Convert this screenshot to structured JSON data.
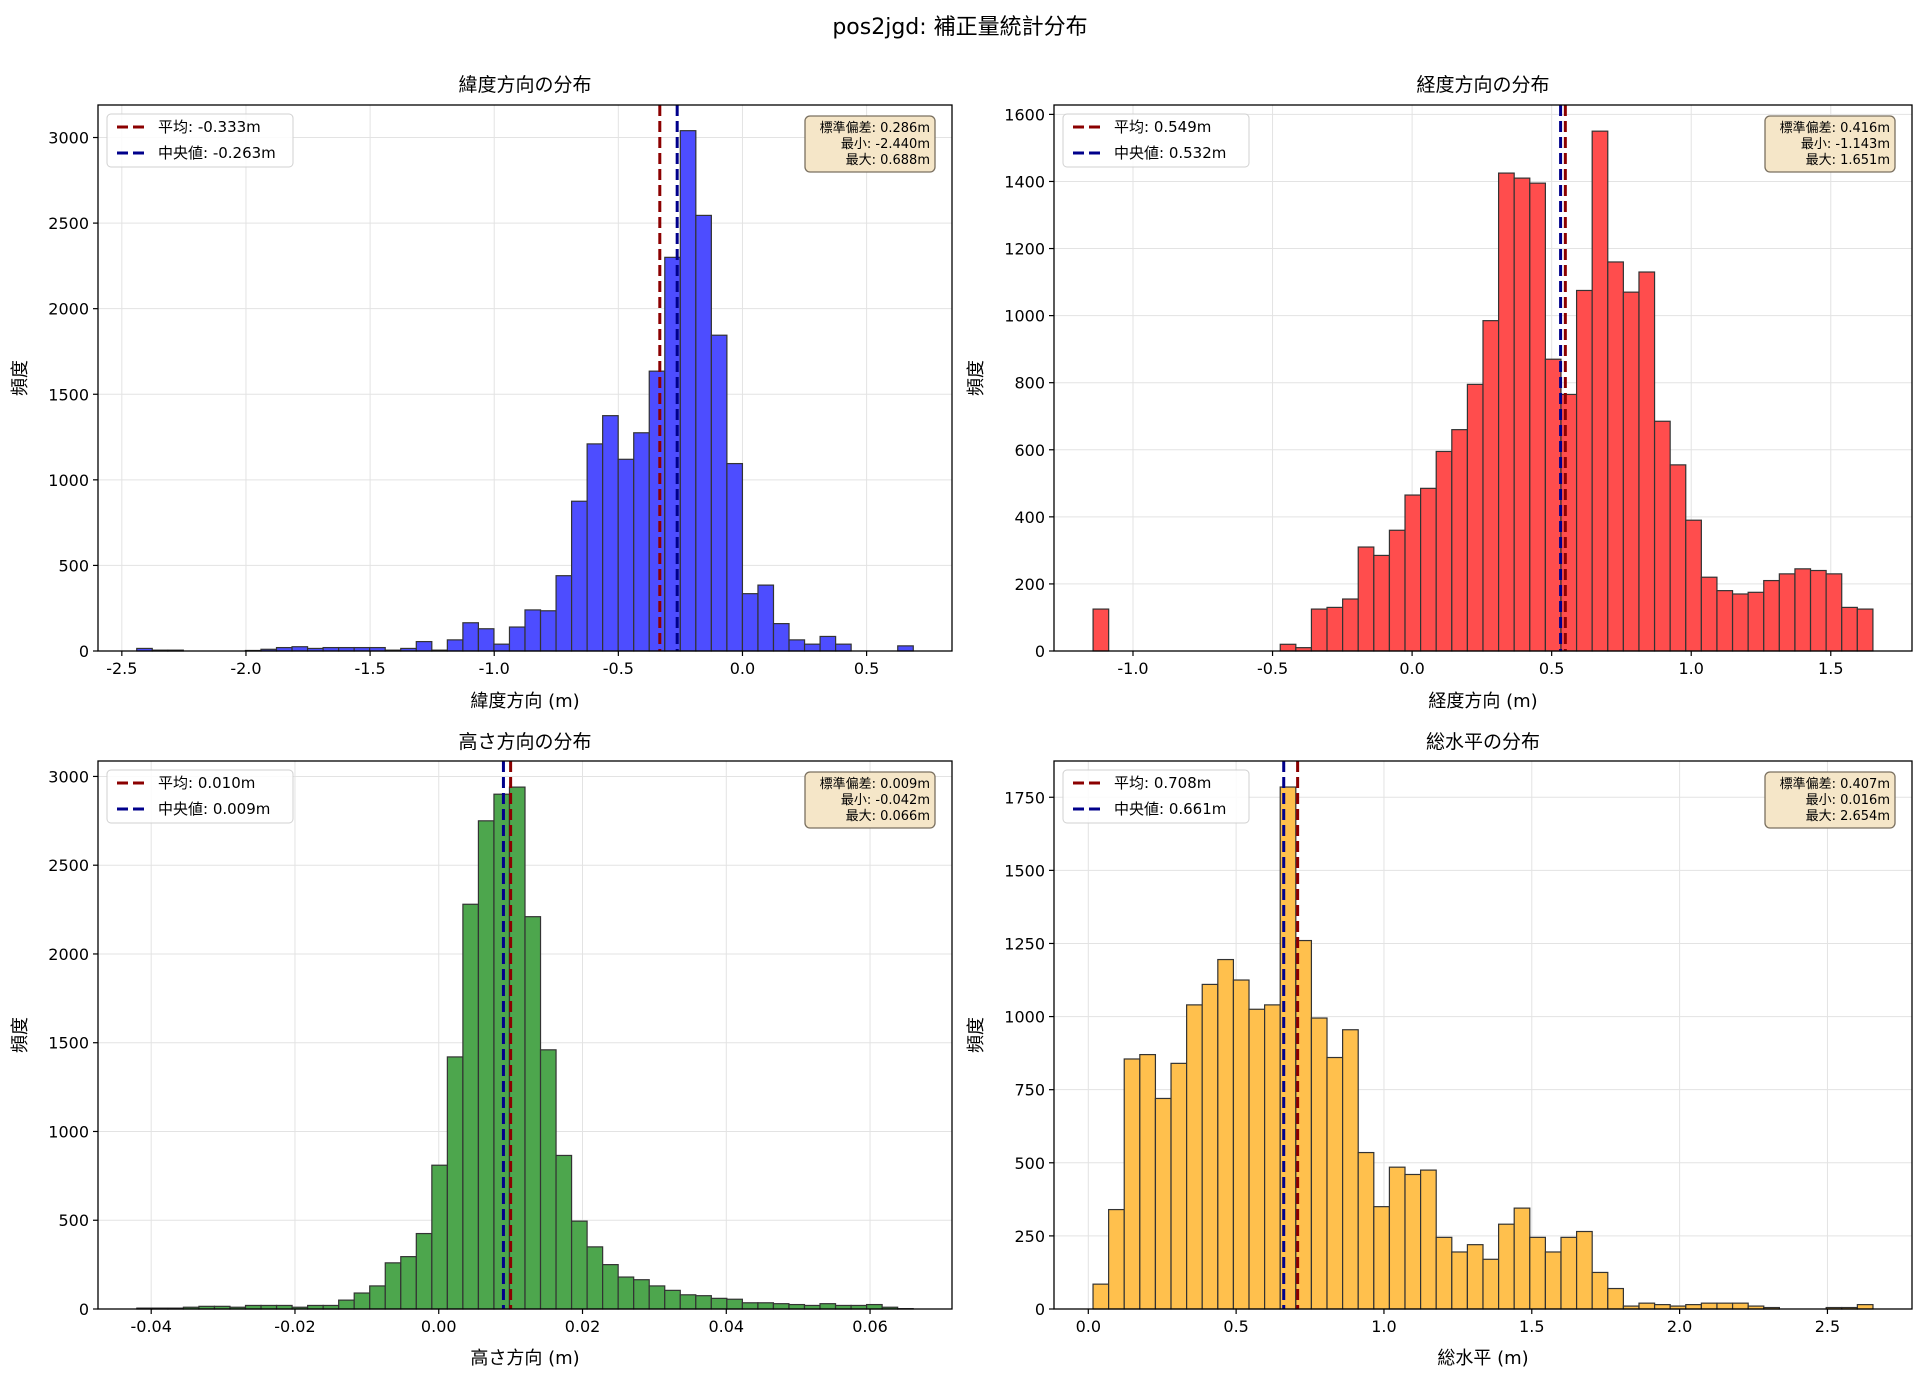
{
  "suptitle": "pos2jgd: 補正量統計分布",
  "chart_data": [
    {
      "type": "histogram",
      "title": "緯度方向の分布",
      "xlabel": "緯度方向 (m)",
      "ylabel": "頻度",
      "color": "#4d4dff",
      "bin_range": [
        -2.44,
        0.688
      ],
      "counts": [
        15,
        5,
        5,
        0,
        0,
        0,
        0,
        3,
        10,
        20,
        25,
        15,
        20,
        20,
        20,
        20,
        5,
        15,
        55,
        5,
        65,
        165,
        130,
        40,
        140,
        240,
        235,
        440,
        875,
        1210,
        1375,
        1120,
        1275,
        1635,
        2300,
        3040,
        2545,
        1845,
        1095,
        335,
        385,
        160,
        65,
        40,
        85,
        40,
        0,
        0,
        0,
        30
      ],
      "xlim": [
        -2.596,
        0.844
      ],
      "ylim": [
        0,
        3190
      ],
      "xticks": [
        -2.5,
        -2.0,
        -1.5,
        -1.0,
        -0.5,
        0.0,
        0.5
      ],
      "xtick_labels": [
        "-2.5",
        "-2.0",
        "-1.5",
        "-1.0",
        "-0.5",
        "0.0",
        "0.5"
      ],
      "yticks": [
        0,
        500,
        1000,
        1500,
        2000,
        2500,
        3000
      ],
      "ytick_labels": [
        "0",
        "500",
        "1000",
        "1500",
        "2000",
        "2500",
        "3000"
      ],
      "mean": -0.333,
      "median": -0.263,
      "legend": {
        "mean": "平均: -0.333m",
        "median": "中央値: -0.263m"
      },
      "stats": [
        "標準偏差: 0.286m",
        "最小: -2.440m",
        "最大: 0.688m"
      ],
      "grid": true
    },
    {
      "type": "histogram",
      "title": "経度方向の分布",
      "xlabel": "経度方向 (m)",
      "ylabel": "頻度",
      "color": "#ff4d4d",
      "bin_range": [
        -1.143,
        1.651
      ],
      "counts": [
        125,
        0,
        0,
        0,
        0,
        0,
        0,
        0,
        0,
        0,
        0,
        0,
        20,
        10,
        125,
        130,
        155,
        310,
        285,
        360,
        465,
        485,
        595,
        660,
        795,
        985,
        1425,
        1410,
        1395,
        870,
        765,
        1075,
        1550,
        1160,
        1070,
        1130,
        685,
        555,
        390,
        220,
        180,
        170,
        175,
        210,
        230,
        245,
        240,
        230,
        130,
        125
      ],
      "xlim": [
        -1.283,
        1.791
      ],
      "ylim": [
        0,
        1628
      ],
      "xticks": [
        -1.0,
        -0.5,
        0.0,
        0.5,
        1.0,
        1.5
      ],
      "xtick_labels": [
        "-1.0",
        "-0.5",
        "0.0",
        "0.5",
        "1.0",
        "1.5"
      ],
      "yticks": [
        0,
        200,
        400,
        600,
        800,
        1000,
        1200,
        1400,
        1600
      ],
      "ytick_labels": [
        "0",
        "200",
        "400",
        "600",
        "800",
        "1000",
        "1200",
        "1400",
        "1600"
      ],
      "mean": 0.549,
      "median": 0.532,
      "legend": {
        "mean": "平均: 0.549m",
        "median": "中央値: 0.532m"
      },
      "stats": [
        "標準偏差: 0.416m",
        "最小: -1.143m",
        "最大: 1.651m"
      ],
      "grid": true
    },
    {
      "type": "histogram",
      "title": "高さ方向の分布",
      "xlabel": "高さ方向 (m)",
      "ylabel": "頻度",
      "color": "#4da64d",
      "bin_range": [
        -0.042,
        0.066
      ],
      "counts": [
        5,
        5,
        5,
        10,
        15,
        15,
        10,
        20,
        20,
        20,
        10,
        20,
        20,
        50,
        90,
        130,
        260,
        295,
        425,
        810,
        1420,
        2280,
        2750,
        2900,
        2940,
        2210,
        1460,
        865,
        495,
        350,
        250,
        180,
        165,
        130,
        105,
        80,
        75,
        60,
        55,
        35,
        35,
        30,
        25,
        20,
        30,
        20,
        20,
        25,
        10,
        2
      ],
      "xlim": [
        -0.0474,
        0.0714
      ],
      "ylim": [
        0,
        3087
      ],
      "xticks": [
        -0.04,
        -0.02,
        0.0,
        0.02,
        0.04,
        0.06
      ],
      "xtick_labels": [
        "-0.04",
        "-0.02",
        "0.00",
        "0.02",
        "0.04",
        "0.06"
      ],
      "yticks": [
        0,
        500,
        1000,
        1500,
        2000,
        2500,
        3000
      ],
      "ytick_labels": [
        "0",
        "500",
        "1000",
        "1500",
        "2000",
        "2500",
        "3000"
      ],
      "mean": 0.01,
      "median": 0.009,
      "legend": {
        "mean": "平均: 0.010m",
        "median": "中央値: 0.009m"
      },
      "stats": [
        "標準偏差: 0.009m",
        "最小: -0.042m",
        "最大: 0.066m"
      ],
      "grid": true
    },
    {
      "type": "histogram",
      "title": "総水平の分布",
      "xlabel": "総水平 (m)",
      "ylabel": "頻度",
      "color": "#ffc04d",
      "bin_range": [
        0.016,
        2.654
      ],
      "counts": [
        85,
        340,
        855,
        870,
        720,
        840,
        1040,
        1110,
        1195,
        1125,
        1025,
        1040,
        1785,
        1260,
        995,
        860,
        955,
        535,
        350,
        485,
        460,
        475,
        245,
        195,
        220,
        170,
        290,
        345,
        245,
        195,
        245,
        265,
        125,
        70,
        10,
        20,
        15,
        10,
        15,
        20,
        20,
        20,
        10,
        5,
        0,
        0,
        0,
        5,
        5,
        15
      ],
      "xlim": [
        -0.116,
        2.786
      ],
      "ylim": [
        0,
        1874
      ],
      "xticks": [
        0.0,
        0.5,
        1.0,
        1.5,
        2.0,
        2.5
      ],
      "xtick_labels": [
        "0.0",
        "0.5",
        "1.0",
        "1.5",
        "2.0",
        "2.5"
      ],
      "yticks": [
        0,
        250,
        500,
        750,
        1000,
        1250,
        1500,
        1750
      ],
      "ytick_labels": [
        "0",
        "250",
        "500",
        "750",
        "1000",
        "1250",
        "1500",
        "1750"
      ],
      "mean": 0.708,
      "median": 0.661,
      "legend": {
        "mean": "平均: 0.708m",
        "median": "中央値: 0.661m"
      },
      "stats": [
        "標準偏差: 0.407m",
        "最小: 0.016m",
        "最大: 2.654m"
      ],
      "grid": true
    }
  ],
  "colors": {
    "mean_line": "#8b0000",
    "median_line": "#00008b",
    "stats_box": "#f5e6c8",
    "bar_edge": "#333333"
  }
}
